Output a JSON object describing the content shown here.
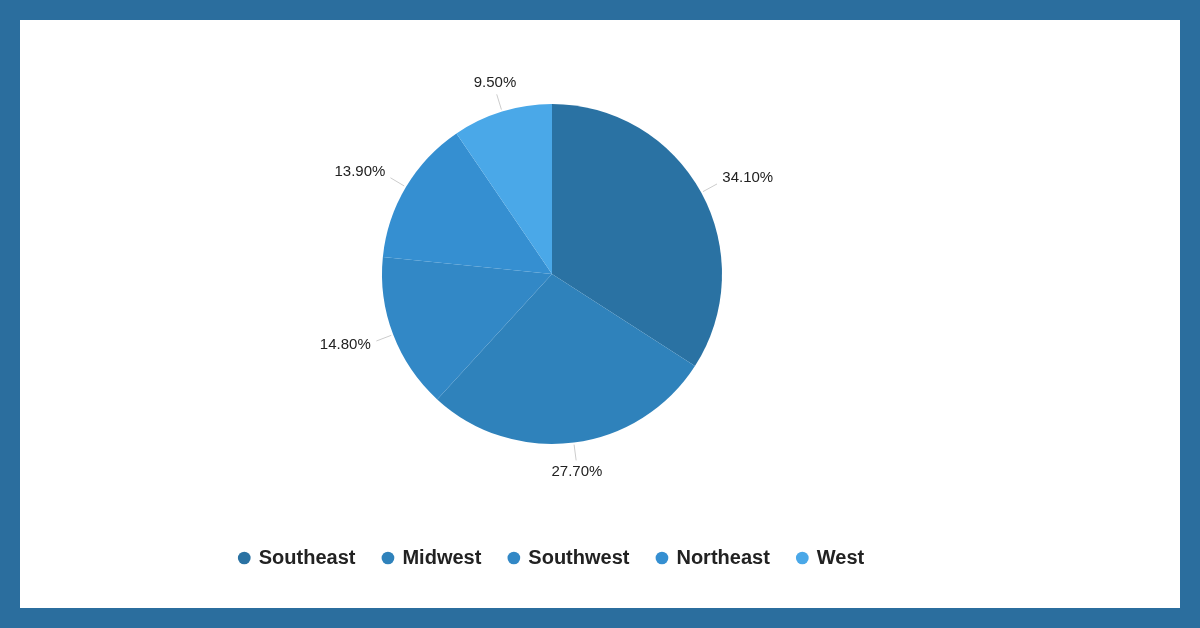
{
  "chart_data": {
    "type": "pie",
    "categories": [
      "Southeast",
      "Midwest",
      "Southwest",
      "Northeast",
      "West"
    ],
    "values": [
      34.1,
      27.7,
      14.8,
      13.9,
      9.5
    ],
    "value_labels": [
      "34.10%",
      "27.70%",
      "14.80%",
      "13.90%",
      "9.50%"
    ],
    "colors": [
      "#2a72a3",
      "#2f82bb",
      "#3288c6",
      "#358fd1",
      "#4aa8e8"
    ],
    "data_labels": true,
    "legend": "bottom"
  }
}
